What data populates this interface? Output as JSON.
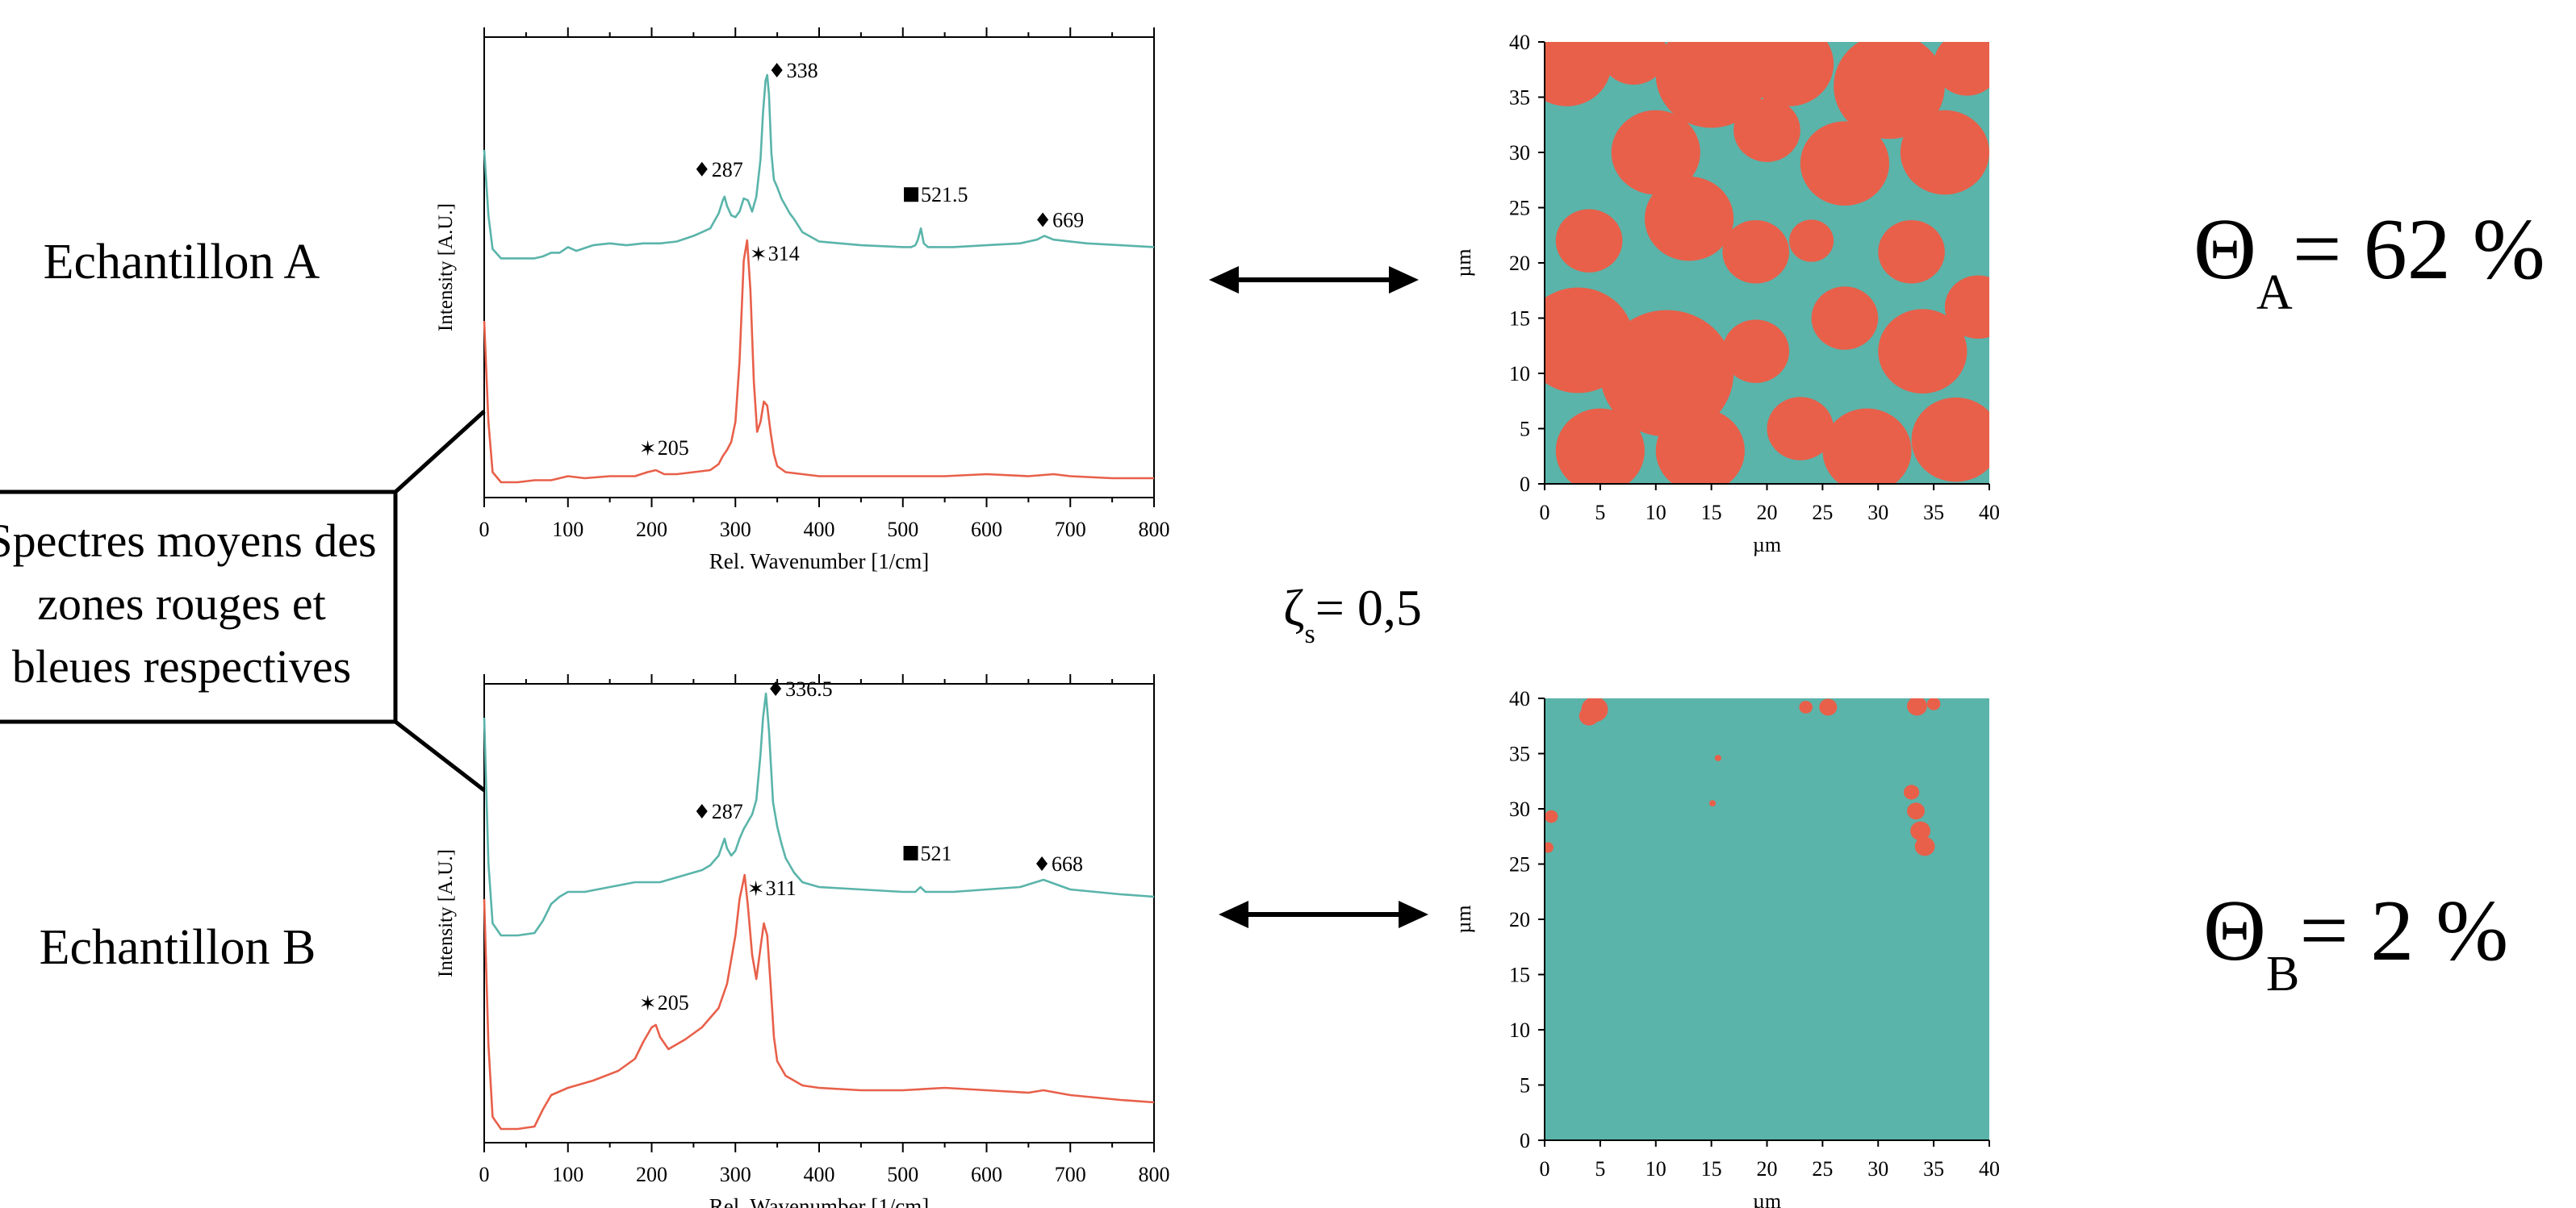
{
  "samples": [
    {
      "label": "Echantillon A"
    },
    {
      "label": "Echantillon B"
    }
  ],
  "callout": {
    "lines": [
      "Spectres moyens des",
      "zones rouges et",
      "bleues respectives"
    ]
  },
  "zeta": {
    "symbol": "ζ",
    "sub": "s",
    "value": "= 0,5"
  },
  "theta": [
    {
      "symbol": "Θ",
      "sub": "A",
      "value": "= 62 %"
    },
    {
      "symbol": "Θ",
      "sub": "B",
      "value": "= 2 %"
    }
  ],
  "colors": {
    "teal": "#5ab4aa",
    "red": "#e8604a",
    "axis": "#000000"
  },
  "icons": [
    "double-arrow-icon",
    "diamond-marker-icon",
    "square-marker-icon",
    "star-marker-icon"
  ],
  "chart_data": [
    {
      "type": "line",
      "panel": "spectrum-A",
      "xlabel": "Rel. Wavenumber [1/cm]",
      "ylabel": "Intensity [A.U.]",
      "xlim": [
        0,
        800
      ],
      "xticks": [
        0,
        100,
        200,
        300,
        400,
        500,
        600,
        700,
        800
      ],
      "series": [
        {
          "color": "#5ab4aa",
          "x": [
            0,
            5,
            10,
            20,
            40,
            60,
            70,
            80,
            90,
            100,
            110,
            130,
            150,
            170,
            190,
            210,
            230,
            250,
            260,
            270,
            280,
            285,
            287,
            290,
            295,
            300,
            305,
            310,
            315,
            320,
            325,
            330,
            333,
            336,
            338,
            340,
            343,
            346,
            350,
            355,
            360,
            365,
            370,
            380,
            400,
            450,
            500,
            510,
            515,
            518,
            521.5,
            525,
            530,
            560,
            600,
            640,
            660,
            669,
            680,
            720,
            760,
            800
          ],
          "y": [
            0.6,
            0.25,
            0.07,
            0.02,
            0.02,
            0.02,
            0.03,
            0.05,
            0.05,
            0.08,
            0.06,
            0.09,
            0.1,
            0.09,
            0.1,
            0.1,
            0.11,
            0.14,
            0.16,
            0.18,
            0.26,
            0.33,
            0.35,
            0.3,
            0.25,
            0.24,
            0.27,
            0.34,
            0.33,
            0.27,
            0.35,
            0.55,
            0.8,
            0.97,
            1.0,
            0.9,
            0.58,
            0.44,
            0.4,
            0.34,
            0.3,
            0.26,
            0.23,
            0.16,
            0.11,
            0.09,
            0.08,
            0.08,
            0.09,
            0.12,
            0.18,
            0.1,
            0.08,
            0.08,
            0.09,
            0.1,
            0.12,
            0.14,
            0.12,
            0.1,
            0.09,
            0.08
          ]
        },
        {
          "color": "#e8604a",
          "x": [
            0,
            5,
            10,
            20,
            40,
            60,
            80,
            100,
            120,
            150,
            180,
            195,
            205,
            215,
            230,
            250,
            270,
            280,
            285,
            290,
            295,
            300,
            305,
            310,
            314,
            318,
            322,
            326,
            330,
            334,
            338,
            342,
            346,
            350,
            360,
            380,
            400,
            450,
            500,
            550,
            600,
            650,
            680,
            700,
            750,
            800
          ],
          "y": [
            0.8,
            0.3,
            0.05,
            0.0,
            0.0,
            0.01,
            0.01,
            0.03,
            0.02,
            0.03,
            0.03,
            0.05,
            0.06,
            0.04,
            0.04,
            0.05,
            0.06,
            0.09,
            0.13,
            0.16,
            0.2,
            0.3,
            0.6,
            1.1,
            1.2,
            0.95,
            0.5,
            0.25,
            0.3,
            0.4,
            0.38,
            0.25,
            0.14,
            0.08,
            0.05,
            0.04,
            0.03,
            0.03,
            0.03,
            0.03,
            0.04,
            0.03,
            0.04,
            0.03,
            0.02,
            0.02
          ]
        }
      ],
      "annotations": [
        {
          "marker": "diamond",
          "text": "338",
          "x": 338,
          "series": 0
        },
        {
          "marker": "diamond",
          "text": "287",
          "x": 287,
          "series": 0
        },
        {
          "marker": "square",
          "text": "521.5",
          "x": 521.5,
          "series": 0
        },
        {
          "marker": "diamond",
          "text": "669",
          "x": 669,
          "series": 0
        },
        {
          "marker": "star",
          "text": "314",
          "x": 314,
          "series": 1
        },
        {
          "marker": "star",
          "text": "205",
          "x": 205,
          "series": 1
        }
      ]
    },
    {
      "type": "line",
      "panel": "spectrum-B",
      "xlabel": "Rel. Wavenumber [1/cm]",
      "ylabel": "Intensity [A.U.]",
      "xlim": [
        0,
        800
      ],
      "xticks": [
        0,
        100,
        200,
        300,
        400,
        500,
        600,
        700,
        800
      ],
      "series": [
        {
          "color": "#5ab4aa",
          "x": [
            0,
            5,
            10,
            20,
            40,
            60,
            70,
            80,
            90,
            100,
            120,
            150,
            180,
            210,
            240,
            260,
            270,
            280,
            285,
            287,
            290,
            295,
            300,
            305,
            310,
            315,
            320,
            325,
            330,
            333,
            336.5,
            340,
            345,
            350,
            355,
            360,
            370,
            380,
            400,
            450,
            500,
            515,
            521,
            527,
            560,
            600,
            640,
            668,
            700,
            760,
            800
          ],
          "y": [
            0.9,
            0.3,
            0.05,
            0.0,
            0.0,
            0.01,
            0.06,
            0.13,
            0.16,
            0.18,
            0.18,
            0.2,
            0.22,
            0.22,
            0.25,
            0.27,
            0.29,
            0.33,
            0.38,
            0.4,
            0.36,
            0.33,
            0.35,
            0.4,
            0.44,
            0.47,
            0.5,
            0.56,
            0.75,
            0.9,
            1.0,
            0.85,
            0.55,
            0.45,
            0.38,
            0.32,
            0.26,
            0.22,
            0.2,
            0.19,
            0.18,
            0.18,
            0.2,
            0.18,
            0.18,
            0.19,
            0.2,
            0.23,
            0.19,
            0.17,
            0.16
          ]
        },
        {
          "color": "#e8604a",
          "x": [
            0,
            5,
            10,
            20,
            40,
            60,
            70,
            80,
            100,
            130,
            160,
            180,
            190,
            200,
            205,
            210,
            220,
            240,
            260,
            280,
            290,
            300,
            305,
            311,
            315,
            320,
            325,
            330,
            334,
            338,
            342,
            346,
            350,
            360,
            380,
            400,
            450,
            500,
            550,
            600,
            650,
            668,
            700,
            760,
            800
          ],
          "y": [
            0.95,
            0.35,
            0.05,
            0.0,
            0.0,
            0.01,
            0.08,
            0.14,
            0.17,
            0.2,
            0.24,
            0.29,
            0.36,
            0.42,
            0.43,
            0.38,
            0.33,
            0.37,
            0.42,
            0.5,
            0.6,
            0.8,
            0.95,
            1.05,
            0.92,
            0.72,
            0.62,
            0.75,
            0.85,
            0.8,
            0.6,
            0.38,
            0.28,
            0.22,
            0.18,
            0.17,
            0.16,
            0.16,
            0.17,
            0.16,
            0.15,
            0.16,
            0.14,
            0.12,
            0.11
          ]
        }
      ],
      "annotations": [
        {
          "marker": "diamond",
          "text": "336.5",
          "x": 336.5,
          "series": 0
        },
        {
          "marker": "diamond",
          "text": "287",
          "x": 287,
          "series": 0
        },
        {
          "marker": "square",
          "text": "521",
          "x": 521,
          "series": 0
        },
        {
          "marker": "diamond",
          "text": "668",
          "x": 668,
          "series": 0
        },
        {
          "marker": "star",
          "text": "311",
          "x": 311,
          "series": 1
        },
        {
          "marker": "star",
          "text": "205",
          "x": 205,
          "series": 1
        }
      ]
    },
    {
      "type": "heatmap",
      "panel": "map-A",
      "xlabel": "µm",
      "ylabel": "µm",
      "xlim": [
        0,
        40
      ],
      "ylim": [
        0,
        40
      ],
      "ticks": [
        0,
        5,
        10,
        15,
        20,
        25,
        30,
        35,
        40
      ],
      "categories": [
        "red",
        "teal"
      ],
      "red_fraction": 0.62,
      "red_blobs": [
        {
          "cx": 2,
          "cy": 38,
          "r": 4
        },
        {
          "cx": 8,
          "cy": 39,
          "r": 3
        },
        {
          "cx": 15,
          "cy": 37,
          "r": 5
        },
        {
          "cx": 22,
          "cy": 38,
          "r": 4
        },
        {
          "cx": 31,
          "cy": 36,
          "r": 5
        },
        {
          "cx": 38,
          "cy": 38,
          "r": 3
        },
        {
          "cx": 10,
          "cy": 30,
          "r": 4
        },
        {
          "cx": 20,
          "cy": 32,
          "r": 3
        },
        {
          "cx": 27,
          "cy": 29,
          "r": 4
        },
        {
          "cx": 36,
          "cy": 30,
          "r": 4
        },
        {
          "cx": 4,
          "cy": 22,
          "r": 3
        },
        {
          "cx": 13,
          "cy": 24,
          "r": 4
        },
        {
          "cx": 19,
          "cy": 21,
          "r": 3
        },
        {
          "cx": 24,
          "cy": 22,
          "r": 2
        },
        {
          "cx": 33,
          "cy": 21,
          "r": 3
        },
        {
          "cx": 3,
          "cy": 13,
          "r": 5
        },
        {
          "cx": 11,
          "cy": 10,
          "r": 6
        },
        {
          "cx": 19,
          "cy": 12,
          "r": 3
        },
        {
          "cx": 27,
          "cy": 15,
          "r": 3
        },
        {
          "cx": 34,
          "cy": 12,
          "r": 4
        },
        {
          "cx": 39,
          "cy": 16,
          "r": 3
        },
        {
          "cx": 5,
          "cy": 3,
          "r": 4
        },
        {
          "cx": 14,
          "cy": 3,
          "r": 4
        },
        {
          "cx": 23,
          "cy": 5,
          "r": 3
        },
        {
          "cx": 29,
          "cy": 3,
          "r": 4
        },
        {
          "cx": 37,
          "cy": 4,
          "r": 4
        }
      ]
    },
    {
      "type": "heatmap",
      "panel": "map-B",
      "xlabel": "µm",
      "ylabel": "µm",
      "xlim": [
        0,
        40
      ],
      "ylim": [
        0,
        40
      ],
      "ticks": [
        0,
        5,
        10,
        15,
        20,
        25,
        30,
        35,
        40
      ],
      "categories": [
        "red",
        "teal"
      ],
      "red_fraction": 0.02,
      "red_blobs": [
        {
          "cx": 4.5,
          "cy": 39,
          "r": 1.2
        },
        {
          "cx": 4.0,
          "cy": 38.4,
          "r": 0.9
        },
        {
          "cx": 23.5,
          "cy": 39.2,
          "r": 0.6
        },
        {
          "cx": 25.5,
          "cy": 39.2,
          "r": 0.8
        },
        {
          "cx": 33.5,
          "cy": 39.3,
          "r": 0.9
        },
        {
          "cx": 35,
          "cy": 39.5,
          "r": 0.6
        },
        {
          "cx": 0.6,
          "cy": 29.3,
          "r": 0.6
        },
        {
          "cx": 0.3,
          "cy": 26.5,
          "r": 0.5
        },
        {
          "cx": 15.6,
          "cy": 34.6,
          "r": 0.3
        },
        {
          "cx": 15.1,
          "cy": 30.5,
          "r": 0.3
        },
        {
          "cx": 33.0,
          "cy": 31.5,
          "r": 0.7
        },
        {
          "cx": 33.4,
          "cy": 29.8,
          "r": 0.8
        },
        {
          "cx": 33.8,
          "cy": 28.0,
          "r": 0.9
        },
        {
          "cx": 34.2,
          "cy": 26.6,
          "r": 0.9
        }
      ]
    }
  ]
}
